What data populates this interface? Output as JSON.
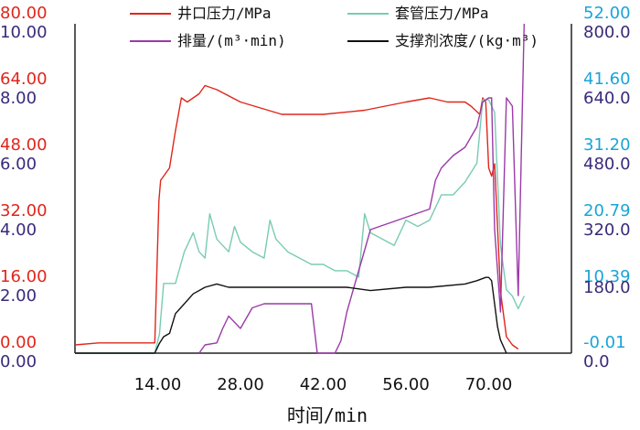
{
  "chart_data": {
    "type": "line",
    "xlabel": "时间/min",
    "x_ticks": [
      14,
      28,
      42,
      56,
      70
    ],
    "x_tick_labels": [
      "14.00",
      "28.00",
      "42.00",
      "56.00",
      "70.00"
    ],
    "xlim": [
      0,
      84
    ],
    "legend_position": "top",
    "axes": [
      {
        "id": "pressure",
        "side": "left-outer",
        "color": "#e0261b",
        "range": [
          0,
          80
        ],
        "tick_values": [
          0,
          16,
          32,
          48,
          64,
          80
        ],
        "tick_labels": [
          "0.00",
          "16.00",
          "32.00",
          "48.00",
          "64.00",
          "80.00"
        ]
      },
      {
        "id": "concentration",
        "side": "left-inner",
        "color": "#3a2a7a",
        "range": [
          0,
          10
        ],
        "tick_values": [
          0,
          2,
          4,
          6,
          8,
          10
        ],
        "tick_labels": [
          "0.00",
          "2.00",
          "4.00",
          "6.00",
          "8.00",
          "10.00"
        ]
      },
      {
        "id": "casing",
        "side": "right-outer",
        "color": "#1aa4d8",
        "range": [
          -0.01,
          52
        ],
        "tick_values": [
          -0.01,
          10.39,
          20.79,
          31.2,
          41.6,
          52
        ],
        "tick_labels": [
          "-0.01",
          "10.39",
          "20.79",
          "31.20",
          "41.60",
          "52.00"
        ]
      },
      {
        "id": "rate",
        "side": "right-inner",
        "color": "#3a2a7a",
        "range": [
          0,
          800
        ],
        "tick_values": [
          0,
          180,
          320,
          480,
          640,
          800
        ],
        "tick_labels": [
          "0.0",
          "180.0",
          "320.0",
          "480.0",
          "640.0",
          "800.0"
        ]
      }
    ],
    "series": [
      {
        "name": "井口压力/MPa",
        "axis": "pressure",
        "color": "#e0261b",
        "x": [
          0,
          4,
          8,
          12,
          13.5,
          14.2,
          14.5,
          15,
          16,
          17,
          18,
          19,
          20,
          21,
          22,
          24,
          28,
          35,
          42,
          49,
          56,
          60,
          63,
          66,
          67,
          68.5,
          69,
          69.5,
          70,
          70.5,
          71,
          72,
          73,
          74,
          75
        ],
        "y": [
          2,
          2.5,
          2.5,
          2.5,
          2.5,
          37,
          42,
          43,
          45,
          54,
          62,
          61,
          62,
          63,
          65,
          64,
          61,
          58,
          58,
          59,
          61,
          62,
          61,
          61,
          60,
          58,
          62,
          61,
          45,
          43,
          46,
          15,
          4,
          2,
          1
        ]
      },
      {
        "name": "套管压力/MPa",
        "axis": "casing",
        "color": "#79cbb4",
        "x": [
          0,
          13.5,
          14.3,
          15,
          17,
          18.5,
          20,
          21,
          22,
          22.8,
          24,
          25,
          26,
          27,
          28,
          30,
          32,
          33,
          34,
          35,
          36,
          38,
          40,
          42,
          44,
          46,
          48,
          49,
          50,
          52,
          54,
          56,
          58,
          60,
          62,
          64,
          66,
          68,
          69,
          70,
          71,
          72,
          73,
          74,
          75,
          76
        ],
        "y": [
          0,
          0,
          3,
          11,
          11,
          16,
          19,
          16,
          15,
          22,
          18,
          17,
          16,
          20,
          17.5,
          16,
          15,
          21,
          18,
          17,
          16,
          15,
          14,
          14,
          13,
          13,
          12,
          22,
          19,
          18,
          17,
          21,
          20,
          21,
          25,
          25,
          27,
          30,
          40,
          40,
          38,
          17,
          10,
          9,
          7,
          9
        ]
      },
      {
        "name": "排量/(m³·min)",
        "axis": "rate",
        "color": "#9b3aa8",
        "x": [
          21,
          22,
          24,
          25,
          26,
          28,
          30,
          32,
          34,
          36,
          38,
          40,
          41,
          42,
          43,
          44,
          45,
          46,
          47,
          48,
          49,
          50,
          52,
          54,
          56,
          58,
          60,
          61,
          62,
          64,
          66,
          68,
          69,
          70,
          70.5,
          71,
          72,
          73,
          74,
          75,
          76
        ],
        "y": [
          0,
          20,
          25,
          60,
          90,
          60,
          110,
          120,
          120,
          120,
          120,
          120,
          0,
          0,
          0,
          0,
          30,
          100,
          150,
          200,
          250,
          300,
          310,
          320,
          330,
          340,
          350,
          420,
          450,
          480,
          500,
          550,
          610,
          620,
          620,
          300,
          100,
          620,
          600,
          140,
          800
        ]
      },
      {
        "name": "支撑剂浓度/(kg·m³)",
        "axis": "concentration",
        "color": "#111111",
        "x": [
          0,
          13.5,
          14.3,
          15,
          16,
          17,
          18,
          20,
          22,
          24,
          26,
          28,
          30,
          34,
          38,
          42,
          46,
          50,
          56,
          60,
          66,
          68,
          69.5,
          70,
          70.5,
          71.5,
          72,
          73
        ],
        "y": [
          0,
          0,
          0.3,
          0.5,
          0.6,
          1.2,
          1.4,
          1.8,
          2.0,
          2.1,
          2.0,
          2.0,
          2.0,
          2.0,
          2.0,
          2.0,
          2.0,
          1.9,
          2.0,
          2.0,
          2.1,
          2.2,
          2.3,
          2.3,
          2.2,
          0.8,
          0.4,
          0
        ]
      }
    ]
  }
}
